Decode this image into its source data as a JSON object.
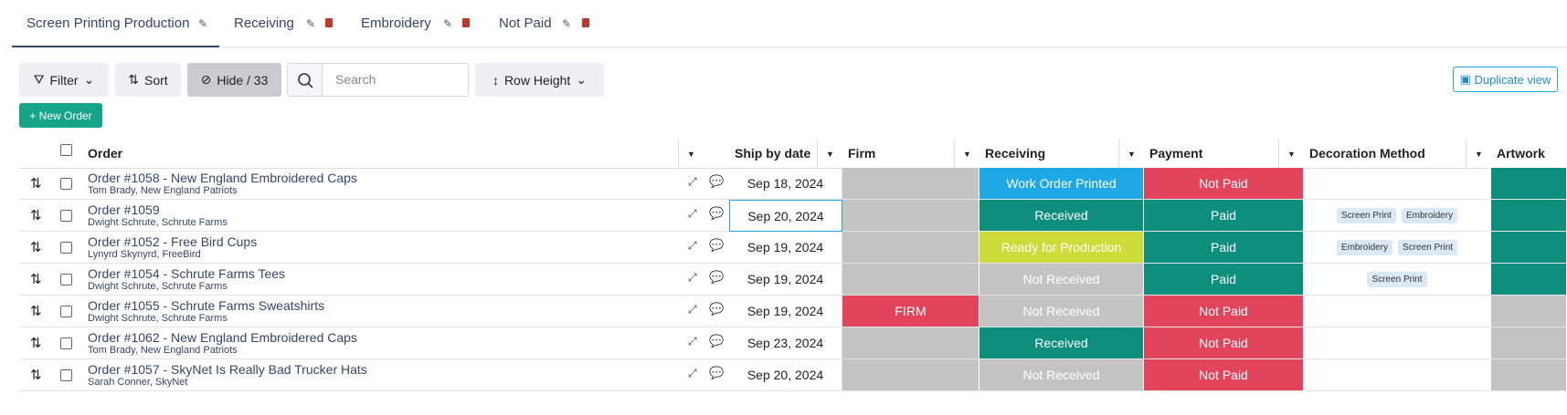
{
  "tabs": [
    {
      "label": "Screen Printing Production"
    },
    {
      "label": "Receiving"
    },
    {
      "label": "Embroidery"
    },
    {
      "label": "Not Paid"
    }
  ],
  "toolbar": {
    "filter": "Filter",
    "sort": "Sort",
    "hide": "Hide / 33",
    "search_placeholder": "Search",
    "row_height": "Row Height",
    "duplicate": "Duplicate view",
    "new_order": "+ New Order"
  },
  "table": {
    "columns": [
      "Order",
      "Ship by date",
      "Firm",
      "Receiving",
      "Payment",
      "Decoration Method",
      "Artwork"
    ],
    "rows": [
      {
        "order": "Order #1058 - New England Embroidered Caps",
        "customer": "Tom Brady, New England Patriots",
        "ship_by": "Sep 18, 2024",
        "firm": {
          "color": "#c4c4c4"
        },
        "receiving": {
          "text": "Work Order Printed",
          "color": "#1fa8e6"
        },
        "payment": {
          "text": "Not Paid",
          "color": "#e2445c"
        },
        "decoration": [],
        "artwork": {
          "color": "#0e8f7e"
        }
      },
      {
        "order": "Order #1059",
        "customer": "Dwight Schrute, Schrute Farms",
        "ship_by": "Sep 20, 2024",
        "firm": {
          "color": "#c4c4c4"
        },
        "receiving": {
          "text": "Received",
          "color": "#0e8f7e"
        },
        "payment": {
          "text": "Paid",
          "color": "#0e8f7e"
        },
        "decoration": [
          "Screen Print",
          "Embroidery"
        ],
        "artwork": {
          "color": "#0e8f7e"
        }
      },
      {
        "order": "Order #1052 - Free Bird Cups",
        "customer": "Lynyrd Skynyrd, FreeBird",
        "ship_by": "Sep 19, 2024",
        "firm": {
          "color": "#c4c4c4"
        },
        "receiving": {
          "text": "Ready for Production",
          "color": "#cddc39"
        },
        "payment": {
          "text": "Paid",
          "color": "#0e8f7e"
        },
        "decoration": [
          "Embroidery",
          "Screen Print"
        ],
        "artwork": {
          "color": "#0e8f7e"
        }
      },
      {
        "order": "Order #1054 - Schrute Farms Tees",
        "customer": "Dwight Schrute, Schrute Farms",
        "ship_by": "Sep 19, 2024",
        "firm": {
          "color": "#c4c4c4"
        },
        "receiving": {
          "text": "Not Received",
          "color": "#c4c4c4"
        },
        "payment": {
          "text": "Paid",
          "color": "#0e8f7e"
        },
        "decoration": [
          "Screen Print"
        ],
        "artwork": {
          "color": "#0e8f7e"
        }
      },
      {
        "order": "Order #1055 - Schrute Farms Sweatshirts",
        "customer": "Dwight Schrute, Schrute Farms",
        "ship_by": "Sep 19, 2024",
        "firm": {
          "text": "FIRM",
          "color": "#e2445c"
        },
        "receiving": {
          "text": "Not Received",
          "color": "#c4c4c4"
        },
        "payment": {
          "text": "Not Paid",
          "color": "#e2445c"
        },
        "decoration": [],
        "artwork": {
          "color": "#c4c4c4"
        }
      },
      {
        "order": "Order #1062 - New England Embroidered Caps",
        "customer": "Tom Brady, New England Patriots",
        "ship_by": "Sep 23, 2024",
        "firm": {
          "color": "#c4c4c4"
        },
        "receiving": {
          "text": "Received",
          "color": "#0e8f7e"
        },
        "payment": {
          "text": "Not Paid",
          "color": "#e2445c"
        },
        "decoration": [],
        "artwork": {
          "color": "#c4c4c4"
        }
      },
      {
        "order": "Order #1057 - SkyNet Is Really Bad Trucker Hats",
        "customer": "Sarah Conner, SkyNet",
        "ship_by": "Sep 20, 2024",
        "firm": {
          "color": "#c4c4c4"
        },
        "receiving": {
          "text": "Not Received",
          "color": "#c4c4c4"
        },
        "payment": {
          "text": "Not Paid",
          "color": "#e2445c"
        },
        "decoration": [],
        "artwork": {
          "color": "#c4c4c4"
        }
      }
    ]
  }
}
